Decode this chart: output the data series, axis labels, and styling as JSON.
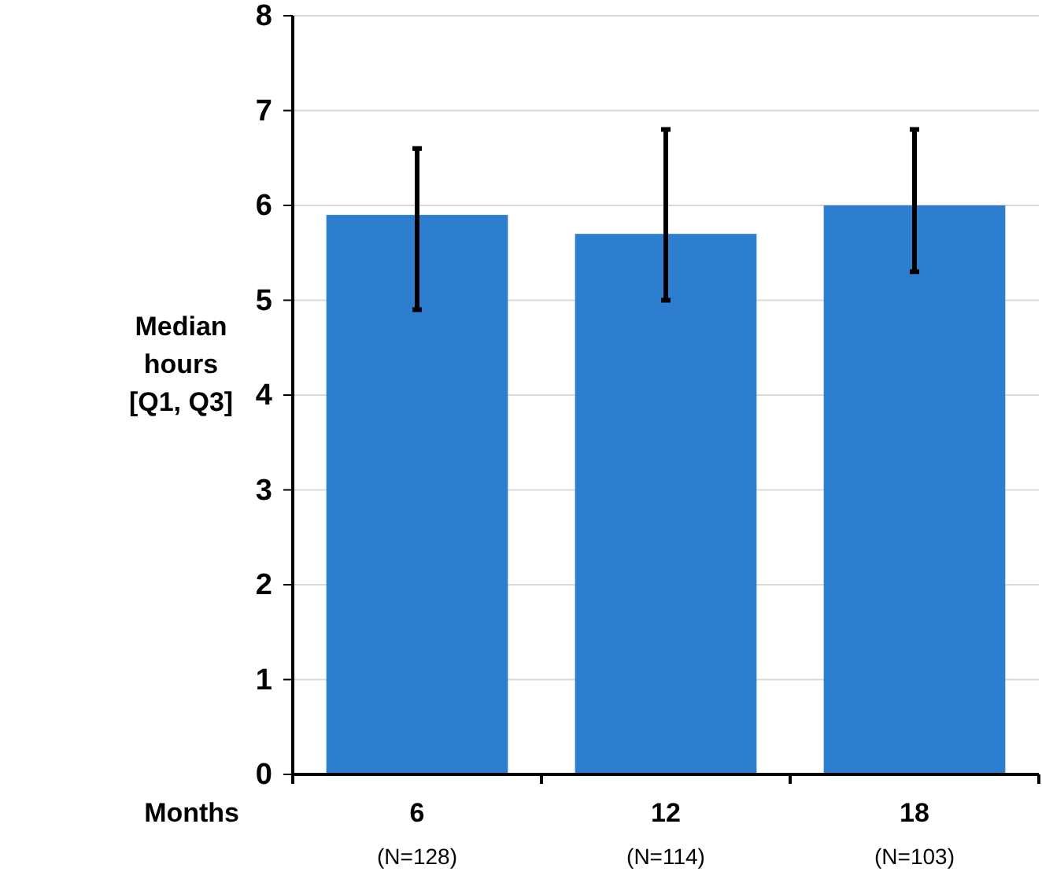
{
  "chart_data": {
    "type": "bar",
    "xlabel": "Months",
    "ylabel": "Median hours [Q1, Q3]",
    "categories": [
      "6",
      "12",
      "18"
    ],
    "values": [
      5.9,
      5.7,
      6.0
    ],
    "errors": [
      [
        4.9,
        6.6
      ],
      [
        5.0,
        6.8
      ],
      [
        5.3,
        6.8
      ]
    ],
    "color": "#2e7ecf",
    "ylim": [
      0,
      8
    ],
    "yticks": [
      0,
      1,
      2,
      3,
      4,
      5,
      6,
      7,
      8
    ],
    "grid": "y",
    "annotations": [
      "(N=128)",
      "(N=114)",
      "(N=103)"
    ]
  }
}
